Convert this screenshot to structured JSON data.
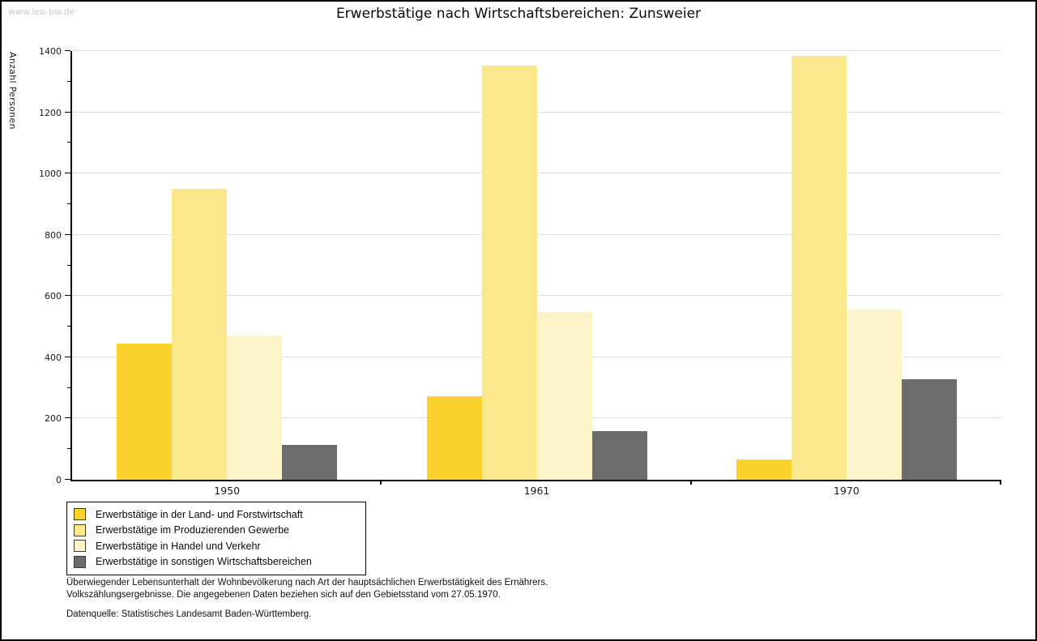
{
  "watermark": "www.leo-bw.de",
  "title": "Erwerbstätige nach Wirtschaftsbereichen: Zunsweier",
  "chart_data": {
    "type": "bar",
    "title": "Erwerbstätige nach Wirtschaftsbereichen: Zunsweier",
    "ylabel": "Anzahl Personen",
    "xlabel": "",
    "categories": [
      "1950",
      "1961",
      "1970"
    ],
    "series": [
      {
        "name": "Erwerbstätige in der Land- und Forstwirtschaft",
        "color": "#FBD22C",
        "values": [
          445,
          273,
          66
        ]
      },
      {
        "name": "Erwerbstätige im Produzierenden Gewerbe",
        "color": "#FBE88D",
        "values": [
          951,
          1352,
          1385
        ]
      },
      {
        "name": "Erwerbstätige in Handel und Verkehr",
        "color": "#FCF3C8",
        "values": [
          470,
          549,
          557
        ]
      },
      {
        "name": "Erwerbstätige in sonstigen Wirtschaftsbereichen",
        "color": "#6C6C6C",
        "values": [
          113,
          160,
          327
        ]
      }
    ],
    "ylim": [
      0,
      1400
    ],
    "ytick_step": 200,
    "yminor_step": 100,
    "grid": true,
    "gridline_color": "#DFDFDF",
    "legend_position": "bottom-left"
  },
  "footnotes": {
    "line1": "Überwiegender Lebensunterhalt der Wohnbevölkerung nach Art der hauptsächlichen Erwerbstätigkeit des Ernährers.",
    "line2": "Volkszählungsergebnisse. Die angegebenen Daten beziehen sich auf den Gebietsstand vom 27.05.1970.",
    "source": "Datenquelle: Statistisches Landesamt Baden-Württemberg."
  }
}
